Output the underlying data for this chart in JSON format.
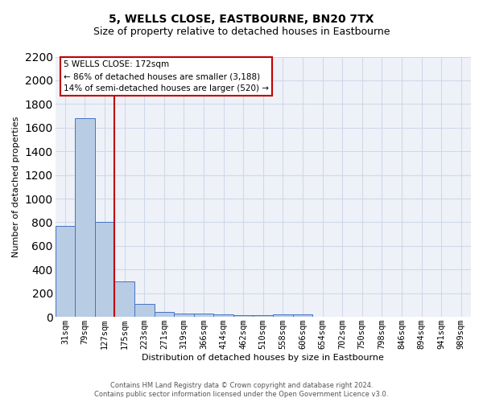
{
  "title": "5, WELLS CLOSE, EASTBOURNE, BN20 7TX",
  "subtitle": "Size of property relative to detached houses in Eastbourne",
  "xlabel": "Distribution of detached houses by size in Eastbourne",
  "ylabel": "Number of detached properties",
  "footnote1": "Contains HM Land Registry data © Crown copyright and database right 2024.",
  "footnote2": "Contains public sector information licensed under the Open Government Licence v3.0.",
  "annotation_title": "5 WELLS CLOSE: 172sqm",
  "annotation_line1": "← 86% of detached houses are smaller (3,188)",
  "annotation_line2": "14% of semi-detached houses are larger (520) →",
  "bar_color": "#b8cce4",
  "bar_edge_color": "#4472c4",
  "vline_color": "#c00000",
  "vline_position": 2.5,
  "grid_color": "#d0d8e8",
  "background_color": "#eef2f8",
  "categories": [
    "31sqm",
    "79sqm",
    "127sqm",
    "175sqm",
    "223sqm",
    "271sqm",
    "319sqm",
    "366sqm",
    "414sqm",
    "462sqm",
    "510sqm",
    "558sqm",
    "606sqm",
    "654sqm",
    "702sqm",
    "750sqm",
    "798sqm",
    "846sqm",
    "894sqm",
    "941sqm",
    "989sqm"
  ],
  "values": [
    770,
    1680,
    800,
    300,
    110,
    40,
    30,
    25,
    20,
    17,
    15,
    20,
    20,
    0,
    0,
    0,
    0,
    0,
    0,
    0,
    0
  ],
  "ylim": [
    0,
    2200
  ],
  "yticks": [
    0,
    200,
    400,
    600,
    800,
    1000,
    1200,
    1400,
    1600,
    1800,
    2000,
    2200
  ],
  "title_fontsize": 10,
  "subtitle_fontsize": 9,
  "ylabel_fontsize": 8,
  "xlabel_fontsize": 8,
  "tick_fontsize": 7.5,
  "annotation_fontsize": 7.5,
  "footnote_fontsize": 6
}
